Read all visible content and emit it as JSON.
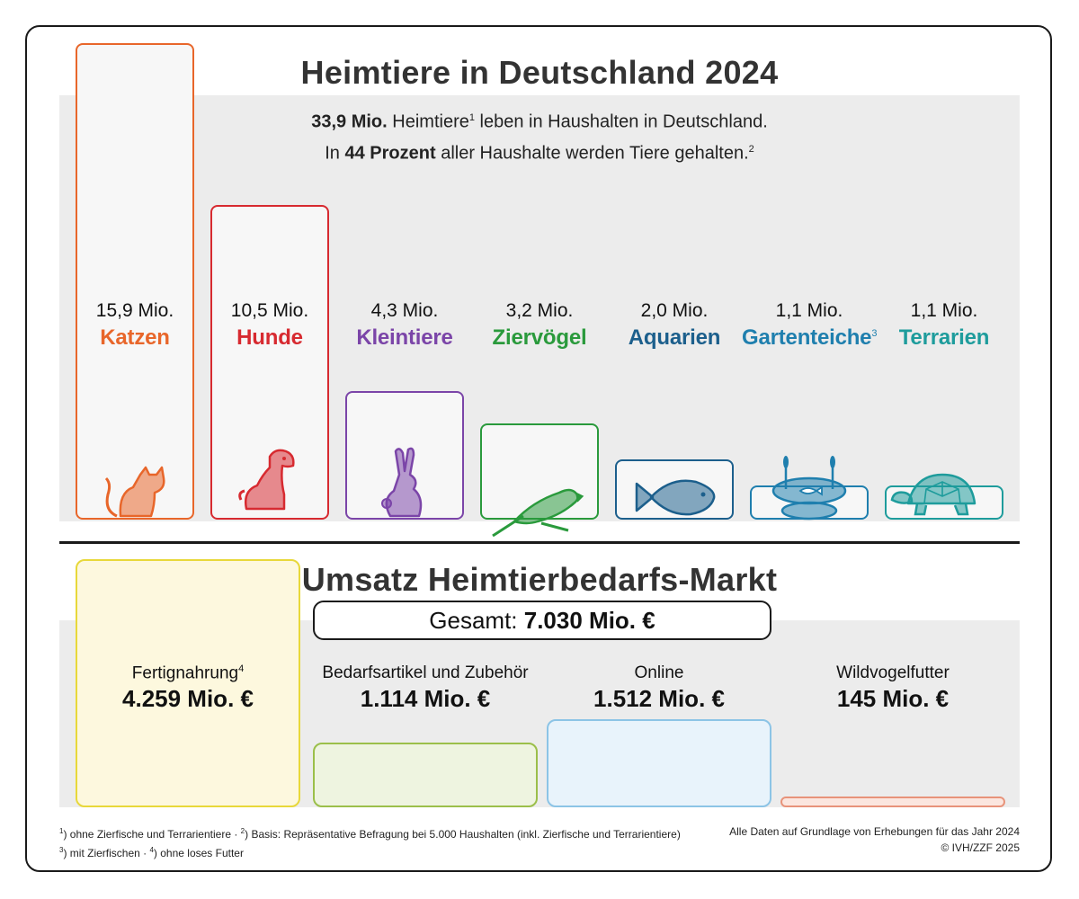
{
  "top": {
    "title": "Heimtiere in Deutschland 2024",
    "line1_bold": "33,9 Mio.",
    "line1_text": " Heimtiere",
    "line1_sup": "1",
    "line1_rest": " leben in Haushalten in Deutschland.",
    "line2_pre": "In ",
    "line2_bold": "44 Prozent",
    "line2_rest": " aller Haushalte werden Tiere gehalten.",
    "line2_sup": "2"
  },
  "chart_data": [
    {
      "type": "bar",
      "title": "Heimtiere in Deutschland 2024",
      "unit": "Mio.",
      "categories": [
        "Katzen",
        "Hunde",
        "Kleintiere",
        "Ziervögel",
        "Aquarien",
        "Gartenteiche",
        "Terrarien"
      ],
      "values": [
        15.9,
        10.5,
        4.3,
        3.2,
        2.0,
        1.1,
        1.1
      ],
      "value_labels": [
        "15,9 Mio.",
        "10,5 Mio.",
        "4,3 Mio.",
        "3,2 Mio.",
        "2,0 Mio.",
        "1,1 Mio.",
        "1,1 Mio."
      ],
      "name_sups": [
        "",
        "",
        "",
        "",
        "",
        "3",
        ""
      ],
      "colors": [
        "#e8662a",
        "#d72a30",
        "#7b45a8",
        "#2a9a3c",
        "#1c5f8c",
        "#1f7fae",
        "#1e9c9c"
      ],
      "icons": [
        "cat-icon",
        "dog-icon",
        "rabbit-icon",
        "parrot-icon",
        "fish-icon",
        "pond-icon",
        "turtle-icon"
      ]
    },
    {
      "type": "bar",
      "title": "Umsatz Heimtierbedarfs-Markt",
      "unit": "Mio. €",
      "total_label": "Gesamt:",
      "total_value": "7.030 Mio. €",
      "categories": [
        "Fertignahrung",
        "Bedarfsartikel und Zubehör",
        "Online",
        "Wildvogelfutter"
      ],
      "values": [
        4259,
        1114,
        1512,
        145
      ],
      "value_labels": [
        "4.259 Mio. €",
        "1.114 Mio. €",
        "1.512 Mio. €",
        "145 Mio. €"
      ],
      "name_sups": [
        "4",
        "",
        "",
        ""
      ],
      "border_colors": [
        "#e8d83a",
        "#9bbf4a",
        "#8cc4e6",
        "#e8937a"
      ],
      "fill_colors": [
        "#fdf8de",
        "#eef4e0",
        "#e8f3fb",
        "#fbe6df"
      ]
    }
  ],
  "footnotes": {
    "left1_parts": [
      "1",
      ") ohne Zierfische und Terrarientiere · ",
      "2",
      ") Basis: Repräsentative Befragung bei 5.000 Haushalten (inkl. Zierfische und Terrarientiere)"
    ],
    "left2_parts": [
      "3",
      ") mit Zierfischen · ",
      "4",
      ") ohne loses Futter"
    ],
    "right1": "Alle Daten auf Grundlage von Erhebungen für das Jahr 2024",
    "right2": "© IVH/ZZF 2025"
  }
}
